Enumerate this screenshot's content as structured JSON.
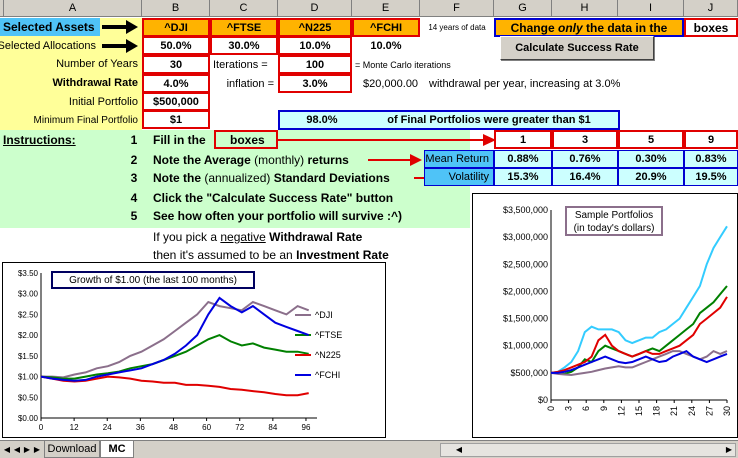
{
  "columns": [
    "A",
    "B",
    "C",
    "D",
    "E",
    "F",
    "G",
    "H",
    "I",
    "J"
  ],
  "labels": {
    "selected_assets": "Selected Assets",
    "selected_allocations": "Selected Allocations",
    "number_of_years": "Number of Years",
    "withdrawal_rate": "Withdrawal Rate",
    "initial_portfolio": "Initial Portfolio",
    "min_final_portfolio": "Minimum Final Portfolio",
    "instructions": "Instructions:"
  },
  "assets": [
    "^DJI",
    "^FTSE",
    "^N225",
    "^FCHI"
  ],
  "allocations": [
    "50.0%",
    "30.0%",
    "10.0%",
    "10.0%"
  ],
  "years_of_data": "14 years of data",
  "change_only": {
    "pre": "Change ",
    "em": "only",
    "post": " the data in the",
    "boxes": "boxes"
  },
  "calc_button": "Calculate Success Rate",
  "number_of_years": "30",
  "iterations_label": "Iterations =",
  "iterations": "100",
  "monte_carlo": "= Monte Carlo iterations",
  "withdrawal_rate": "4.0%",
  "inflation_label": "inflation =",
  "inflation": "3.0%",
  "withdrawal_amount": "$20,000.00",
  "withdrawal_text": "withdrawal  per year, increasing at 3.0%",
  "initial_portfolio": "$500,000",
  "min_final": "$1",
  "success_pct": "98.0%",
  "success_text": "of Final Portfolios were greater than $1",
  "instructions": [
    {
      "n": "1",
      "text": "Fill in the",
      "box": "boxes"
    },
    {
      "n": "2",
      "text_pre": "Note the Average ",
      "text_norm": "(monthly)",
      "text_post": " returns"
    },
    {
      "n": "3",
      "text_pre": "Note the ",
      "text_norm": "(annualized)",
      "text_post": " Standard Deviations"
    },
    {
      "n": "4",
      "text": "Click the \"Calculate Success Rate\" button"
    },
    {
      "n": "5",
      "text": "See how often your portfolio will survive :^)"
    }
  ],
  "negative_note": {
    "l1_pre": "If you pick a ",
    "l1_u": "negative",
    "l1_b": " Withdrawal Rate",
    "l2_pre": "then it's assumed to be an ",
    "l2_b": "Investment Rate"
  },
  "stats": {
    "cols": [
      "1",
      "3",
      "5",
      "9"
    ],
    "mean_label": "Mean Return",
    "vol_label": "Volatility",
    "mean": [
      "0.88%",
      "0.76%",
      "0.30%",
      "0.83%"
    ],
    "vol": [
      "15.3%",
      "16.4%",
      "20.9%",
      "19.5%"
    ]
  },
  "tabs": [
    "Download",
    "MC"
  ],
  "colors": {
    "dji": "#8b6f8b",
    "ftse": "#008000",
    "n225": "#e00000",
    "fchi": "#0000e0",
    "cyan": "#33ccff"
  },
  "chart_data": [
    {
      "type": "line",
      "title": "Growth of $1.00 (the last 100 months)",
      "x_ticks": [
        0,
        12,
        24,
        36,
        48,
        60,
        72,
        84,
        96
      ],
      "y_ticks": [
        "$0.00",
        "$0.50",
        "$1.00",
        "$1.50",
        "$2.00",
        "$2.50",
        "$3.00",
        "$3.50"
      ],
      "ylim": [
        0,
        3.5
      ],
      "series": [
        {
          "name": "^DJI",
          "values": [
            1.0,
            1.0,
            0.98,
            1.05,
            1.1,
            1.2,
            1.25,
            1.35,
            1.5,
            1.6,
            1.75,
            1.9,
            2.1,
            2.3,
            2.5,
            2.8,
            2.7,
            2.65,
            2.6,
            2.8,
            2.7,
            2.6,
            2.5,
            2.7,
            2.6
          ]
        },
        {
          "name": "^FTSE",
          "values": [
            1.0,
            0.98,
            0.95,
            0.95,
            1.0,
            1.05,
            1.08,
            1.12,
            1.2,
            1.25,
            1.3,
            1.4,
            1.5,
            1.6,
            1.75,
            1.9,
            2.0,
            1.85,
            1.75,
            1.8,
            1.7,
            1.65,
            1.6,
            1.6,
            1.55
          ]
        },
        {
          "name": "^N225",
          "values": [
            1.0,
            0.95,
            0.9,
            0.88,
            0.9,
            0.95,
            1.0,
            0.98,
            0.95,
            0.9,
            0.88,
            0.85,
            0.85,
            0.8,
            0.8,
            0.78,
            0.75,
            0.7,
            0.68,
            0.65,
            0.62,
            0.58,
            0.55,
            0.55,
            0.6
          ]
        },
        {
          "name": "^FCHI",
          "values": [
            1.0,
            0.95,
            0.92,
            0.9,
            0.92,
            1.0,
            1.05,
            1.1,
            1.15,
            1.2,
            1.3,
            1.4,
            1.55,
            1.75,
            2.0,
            2.5,
            2.9,
            2.7,
            2.55,
            2.7,
            2.5,
            2.3,
            2.2,
            2.1,
            2.0
          ]
        }
      ]
    },
    {
      "type": "line",
      "title": "Sample Portfolios (in today's dollars)",
      "title_lines": [
        "Sample Portfolios",
        "(in today's dollars)"
      ],
      "x_ticks": [
        0,
        3,
        6,
        9,
        12,
        15,
        18,
        21,
        24,
        27,
        30
      ],
      "y_ticks": [
        "$0",
        "$500,000",
        "$1,000,000",
        "$1,500,000",
        "$2,000,000",
        "$2,500,000",
        "$3,000,000",
        "$3,500,000"
      ],
      "ylim": [
        0,
        3500000
      ],
      "series": [
        {
          "values": [
            500000,
            520000,
            600000,
            700000,
            900000,
            1250000,
            1350000,
            1300000,
            1300000,
            1300000,
            1250000,
            1100000,
            1050000,
            1100000,
            1150000,
            1150000,
            1250000,
            1300000,
            1400000,
            1500000,
            1700000,
            1900000,
            2100000,
            2500000,
            2800000,
            3000000,
            3200000
          ]
        },
        {
          "values": [
            500000,
            500000,
            480000,
            520000,
            600000,
            750000,
            700000,
            900000,
            1000000,
            950000,
            900000,
            850000,
            800000,
            850000,
            900000,
            950000,
            900000,
            1000000,
            1100000,
            1200000,
            1300000,
            1400000,
            1600000,
            1700000,
            1800000,
            1950000,
            2100000
          ]
        },
        {
          "values": [
            500000,
            520000,
            550000,
            600000,
            650000,
            700000,
            800000,
            1100000,
            1200000,
            1000000,
            900000,
            850000,
            800000,
            850000,
            900000,
            850000,
            850000,
            900000,
            950000,
            1000000,
            1100000,
            1200000,
            1400000,
            1500000,
            1600000,
            1700000,
            1900000
          ]
        },
        {
          "values": [
            500000,
            480000,
            470000,
            460000,
            480000,
            500000,
            520000,
            550000,
            580000,
            600000,
            620000,
            600000,
            600000,
            650000,
            700000,
            750000,
            800000,
            850000,
            900000,
            900000,
            850000,
            800000,
            750000,
            800000,
            900000,
            850000,
            900000
          ]
        },
        {
          "values": [
            500000,
            500000,
            520000,
            550000,
            600000,
            650000,
            700000,
            750000,
            800000,
            750000,
            700000,
            680000,
            700000,
            750000,
            800000,
            750000,
            700000,
            720000,
            800000,
            850000,
            900000,
            800000,
            750000,
            700000,
            750000,
            800000,
            850000
          ]
        }
      ]
    }
  ]
}
